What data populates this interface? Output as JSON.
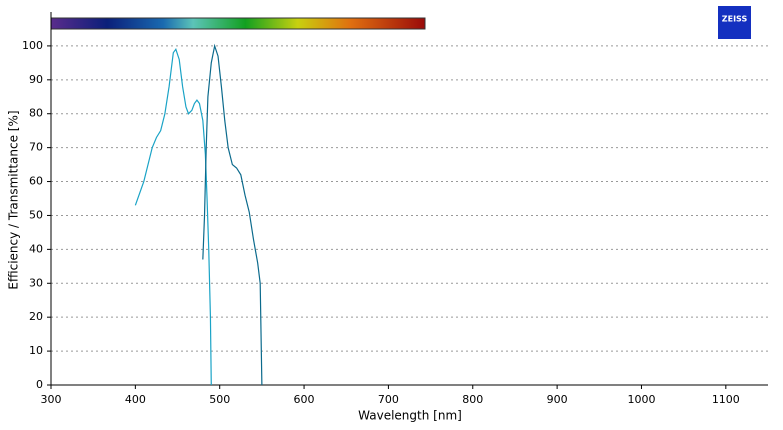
{
  "chart_data": {
    "type": "line",
    "x_label": "Wavelength [nm]",
    "y_label": "Efficiency / Transmittance [%]",
    "logo": "ZEISS",
    "xlim": [
      300,
      1150
    ],
    "xticks": [
      300,
      400,
      500,
      600,
      700,
      800,
      900,
      1000,
      1100
    ],
    "ylim": [
      0,
      110
    ],
    "yticks": [
      0,
      10,
      20,
      30,
      40,
      50,
      60,
      70,
      80,
      90,
      100
    ],
    "grid": true,
    "series": [
      {
        "color": "#1aa3c6",
        "x": [
          400,
          410,
          420,
          425,
          430,
          435,
          440,
          445,
          448,
          452,
          456,
          460,
          463,
          467,
          470,
          473,
          476,
          480,
          483,
          485,
          487,
          489,
          490
        ],
        "values": [
          53,
          60,
          70,
          73,
          75,
          80,
          88,
          98,
          99,
          96,
          88,
          82,
          80,
          81,
          83,
          84,
          83,
          78,
          68,
          55,
          40,
          20,
          0
        ]
      },
      {
        "color": "#0b6a8c",
        "x": [
          480,
          482,
          484,
          486,
          490,
          494,
          498,
          502,
          506,
          510,
          515,
          520,
          525,
          530,
          535,
          540,
          545,
          548,
          549,
          550
        ],
        "values": [
          37,
          50,
          70,
          85,
          95,
          100,
          97,
          88,
          78,
          70,
          65,
          64,
          62,
          56,
          51,
          43,
          36,
          30,
          15,
          0
        ]
      }
    ]
  }
}
